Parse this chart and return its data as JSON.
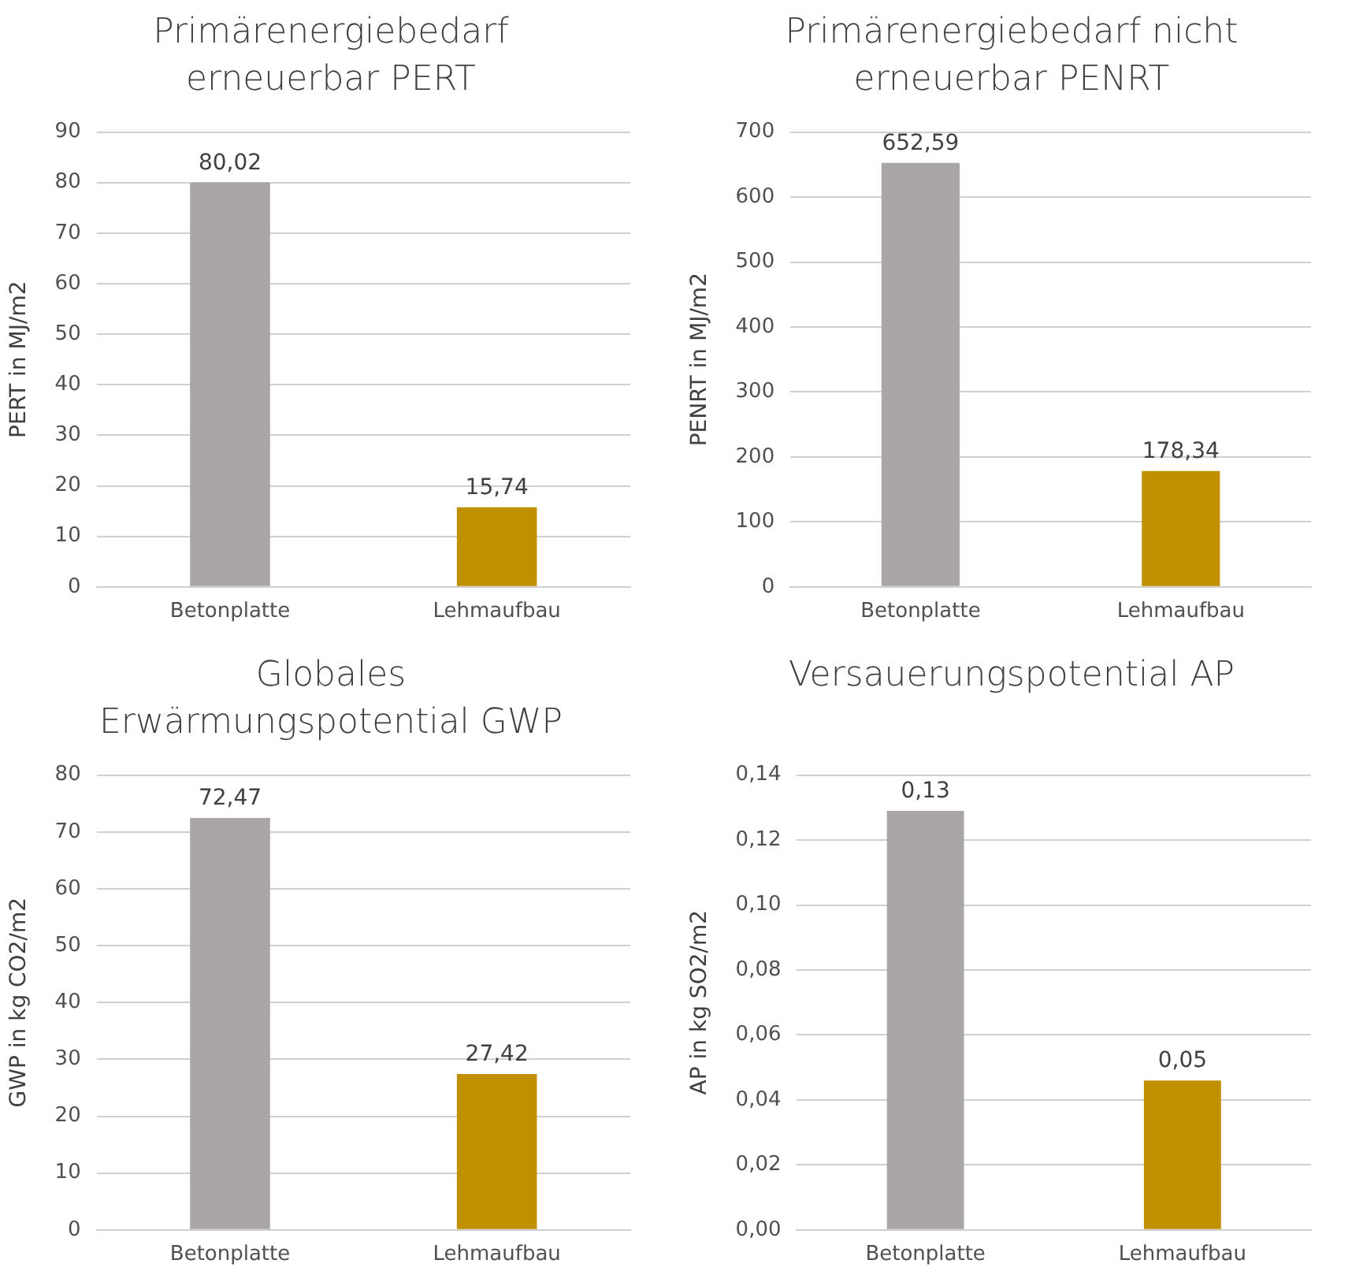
{
  "chart_data": [
    {
      "type": "bar",
      "title": "Primärenergiebedarf erneuerbar PERT",
      "ylabel": "PERT in MJ/m2",
      "categories": [
        "Betonplatte",
        "Lehmaufbau"
      ],
      "values": [
        80.02,
        15.74
      ],
      "colors": [
        "#aaa5a6",
        "#c09000"
      ],
      "value_labels": [
        "80,02",
        "15,74"
      ],
      "ylim": [
        0,
        90
      ],
      "yticks": [
        0,
        10,
        20,
        30,
        40,
        50,
        60,
        70,
        80,
        90
      ],
      "grid": "y"
    },
    {
      "type": "bar",
      "title": "Primärenergiebedarf nicht erneuerbar PENRT",
      "ylabel": "PENRT in MJ/m2",
      "categories": [
        "Betonplatte",
        "Lehmaufbau"
      ],
      "values": [
        652.59,
        178.34
      ],
      "colors": [
        "#aaa5a6",
        "#c09000"
      ],
      "value_labels": [
        "652,59",
        "178,34"
      ],
      "ylim": [
        0,
        700
      ],
      "yticks": [
        0,
        100,
        200,
        300,
        400,
        500,
        600,
        700
      ],
      "grid": "y"
    },
    {
      "type": "bar",
      "title": "Globales Erwärmungspotential GWP",
      "ylabel": "GWP in kg CO2/m2",
      "categories": [
        "Betonplatte",
        "Lehmaufbau"
      ],
      "values": [
        72.47,
        27.42
      ],
      "colors": [
        "#aaa5a6",
        "#c09000"
      ],
      "value_labels": [
        "72,47",
        "27,42"
      ],
      "ylim": [
        0,
        80
      ],
      "yticks": [
        0,
        10,
        20,
        30,
        40,
        50,
        60,
        70,
        80
      ],
      "grid": "y"
    },
    {
      "type": "bar",
      "title": "Versauerungspotential AP",
      "ylabel": "AP in kg SO2/m2",
      "categories": [
        "Betonplatte",
        "Lehmaufbau"
      ],
      "values": [
        0.129,
        0.046
      ],
      "colors": [
        "#aaa5a6",
        "#c09000"
      ],
      "value_labels": [
        "0,13",
        "0,05"
      ],
      "ylim": [
        0,
        0.14
      ],
      "yticks": [
        {
          "value": 0,
          "label": "0,00"
        },
        {
          "value": 0.02,
          "label": "0,02"
        },
        {
          "value": 0.04,
          "label": "0,04"
        },
        {
          "value": 0.06,
          "label": "0,06"
        },
        {
          "value": 0.08,
          "label": "0,08"
        },
        {
          "value": 0.1,
          "label": "0,10"
        },
        {
          "value": 0.12,
          "label": "0,12"
        },
        {
          "value": 0.14,
          "label": "0,14"
        }
      ],
      "grid": "y"
    }
  ]
}
